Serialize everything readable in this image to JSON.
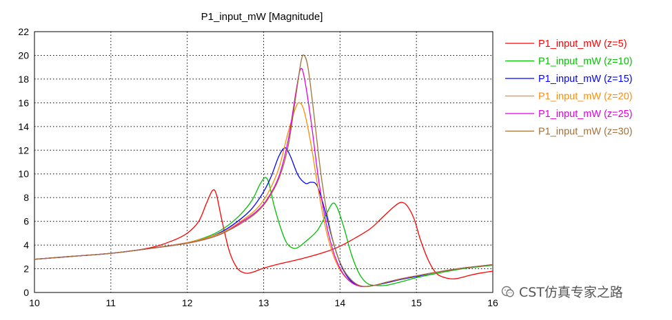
{
  "chart_data": {
    "type": "line",
    "title": "P1_input_mW [Magnitude]",
    "xlabel": "",
    "ylabel": "",
    "xlim": [
      10,
      16
    ],
    "ylim": [
      0,
      22
    ],
    "x_ticks": [
      10,
      11,
      12,
      13,
      14,
      15,
      16
    ],
    "y_ticks": [
      0,
      2,
      4,
      6,
      8,
      10,
      12,
      14,
      16,
      18,
      20,
      22
    ],
    "grid": true,
    "legend_position": "right",
    "series": [
      {
        "name": "P1_input_mW (z=5)",
        "color": "#ff0000",
        "points": [
          [
            10,
            2.8
          ],
          [
            10.5,
            3.05
          ],
          [
            11,
            3.3
          ],
          [
            11.5,
            3.75
          ],
          [
            11.8,
            4.35
          ],
          [
            12.0,
            5.0
          ],
          [
            12.15,
            6.0
          ],
          [
            12.25,
            7.5
          ],
          [
            12.33,
            8.6
          ],
          [
            12.38,
            8.3
          ],
          [
            12.45,
            6.2
          ],
          [
            12.55,
            3.5
          ],
          [
            12.65,
            2.1
          ],
          [
            12.75,
            1.65
          ],
          [
            12.85,
            1.7
          ],
          [
            13.0,
            2.05
          ],
          [
            13.2,
            2.4
          ],
          [
            13.5,
            2.85
          ],
          [
            13.8,
            3.4
          ],
          [
            14.0,
            3.9
          ],
          [
            14.2,
            4.6
          ],
          [
            14.4,
            5.4
          ],
          [
            14.55,
            6.3
          ],
          [
            14.7,
            7.2
          ],
          [
            14.8,
            7.6
          ],
          [
            14.88,
            7.3
          ],
          [
            14.97,
            6.2
          ],
          [
            15.05,
            4.5
          ],
          [
            15.15,
            2.8
          ],
          [
            15.25,
            1.7
          ],
          [
            15.35,
            1.3
          ],
          [
            15.5,
            1.15
          ],
          [
            15.7,
            1.45
          ],
          [
            15.85,
            1.65
          ],
          [
            16.0,
            1.8
          ]
        ]
      },
      {
        "name": "P1_input_mW (z=10)",
        "color": "#00c000",
        "points": [
          [
            10,
            2.8
          ],
          [
            10.5,
            3.05
          ],
          [
            11,
            3.3
          ],
          [
            11.5,
            3.7
          ],
          [
            12.0,
            4.2
          ],
          [
            12.3,
            4.8
          ],
          [
            12.5,
            5.5
          ],
          [
            12.7,
            6.6
          ],
          [
            12.85,
            7.8
          ],
          [
            12.95,
            9.1
          ],
          [
            13.02,
            9.7
          ],
          [
            13.07,
            9.2
          ],
          [
            13.13,
            7.5
          ],
          [
            13.22,
            5.5
          ],
          [
            13.3,
            4.2
          ],
          [
            13.38,
            3.75
          ],
          [
            13.45,
            3.8
          ],
          [
            13.55,
            4.3
          ],
          [
            13.7,
            5.2
          ],
          [
            13.82,
            6.6
          ],
          [
            13.9,
            7.5
          ],
          [
            13.96,
            7.2
          ],
          [
            14.05,
            5.5
          ],
          [
            14.15,
            3.2
          ],
          [
            14.25,
            1.6
          ],
          [
            14.35,
            0.8
          ],
          [
            14.45,
            0.6
          ],
          [
            14.6,
            0.6
          ],
          [
            14.8,
            0.9
          ],
          [
            15.0,
            1.25
          ],
          [
            15.3,
            1.65
          ],
          [
            15.6,
            2.0
          ],
          [
            16.0,
            2.3
          ]
        ]
      },
      {
        "name": "P1_input_mW (z=15)",
        "color": "#0000ff",
        "points": [
          [
            10,
            2.8
          ],
          [
            10.5,
            3.05
          ],
          [
            11,
            3.3
          ],
          [
            11.5,
            3.7
          ],
          [
            12.0,
            4.2
          ],
          [
            12.3,
            4.7
          ],
          [
            12.5,
            5.3
          ],
          [
            12.7,
            6.2
          ],
          [
            12.85,
            7.1
          ],
          [
            13.0,
            8.5
          ],
          [
            13.1,
            9.8
          ],
          [
            13.2,
            11.5
          ],
          [
            13.28,
            12.2
          ],
          [
            13.35,
            11.5
          ],
          [
            13.45,
            9.9
          ],
          [
            13.55,
            9.2
          ],
          [
            13.62,
            9.3
          ],
          [
            13.7,
            9.0
          ],
          [
            13.8,
            7.0
          ],
          [
            13.9,
            4.5
          ],
          [
            14.0,
            2.5
          ],
          [
            14.1,
            1.3
          ],
          [
            14.2,
            0.7
          ],
          [
            14.3,
            0.5
          ],
          [
            14.4,
            0.55
          ],
          [
            14.6,
            0.8
          ],
          [
            14.8,
            1.1
          ],
          [
            15.0,
            1.35
          ],
          [
            15.3,
            1.75
          ],
          [
            15.6,
            2.05
          ],
          [
            16.0,
            2.35
          ]
        ]
      },
      {
        "name": "P1_input_mW (z=20)",
        "color": "#ff8c00",
        "points": [
          [
            10,
            2.8
          ],
          [
            10.5,
            3.05
          ],
          [
            11,
            3.3
          ],
          [
            11.5,
            3.7
          ],
          [
            12.0,
            4.2
          ],
          [
            12.3,
            4.7
          ],
          [
            12.5,
            5.2
          ],
          [
            12.7,
            6.0
          ],
          [
            12.9,
            7.0
          ],
          [
            13.05,
            8.3
          ],
          [
            13.2,
            10.5
          ],
          [
            13.32,
            13.5
          ],
          [
            13.42,
            15.6
          ],
          [
            13.47,
            16.0
          ],
          [
            13.53,
            15.3
          ],
          [
            13.62,
            12.5
          ],
          [
            13.72,
            8.5
          ],
          [
            13.82,
            5.2
          ],
          [
            13.92,
            3.0
          ],
          [
            14.02,
            1.7
          ],
          [
            14.12,
            1.0
          ],
          [
            14.22,
            0.6
          ],
          [
            14.32,
            0.5
          ],
          [
            14.45,
            0.6
          ],
          [
            14.6,
            0.85
          ],
          [
            14.8,
            1.15
          ],
          [
            15.0,
            1.4
          ],
          [
            15.3,
            1.75
          ],
          [
            15.6,
            2.05
          ],
          [
            16.0,
            2.35
          ]
        ]
      },
      {
        "name": "P1_input_mW (z=25)",
        "color": "#e000e0",
        "points": [
          [
            10,
            2.8
          ],
          [
            10.5,
            3.05
          ],
          [
            11,
            3.3
          ],
          [
            11.5,
            3.7
          ],
          [
            12.0,
            4.15
          ],
          [
            12.3,
            4.6
          ],
          [
            12.5,
            5.1
          ],
          [
            12.7,
            5.9
          ],
          [
            12.9,
            6.8
          ],
          [
            13.05,
            7.9
          ],
          [
            13.2,
            9.8
          ],
          [
            13.32,
            12.8
          ],
          [
            13.42,
            16.8
          ],
          [
            13.48,
            18.8
          ],
          [
            13.53,
            18.2
          ],
          [
            13.62,
            14.5
          ],
          [
            13.72,
            9.5
          ],
          [
            13.82,
            5.8
          ],
          [
            13.92,
            3.3
          ],
          [
            14.02,
            1.8
          ],
          [
            14.12,
            1.0
          ],
          [
            14.22,
            0.6
          ],
          [
            14.32,
            0.5
          ],
          [
            14.45,
            0.6
          ],
          [
            14.6,
            0.85
          ],
          [
            14.8,
            1.15
          ],
          [
            15.0,
            1.4
          ],
          [
            15.3,
            1.75
          ],
          [
            15.6,
            2.05
          ],
          [
            16.0,
            2.35
          ]
        ]
      },
      {
        "name": "P1_input_mW (z=30)",
        "color": "#a0703a",
        "points": [
          [
            10,
            2.8
          ],
          [
            10.5,
            3.05
          ],
          [
            11,
            3.3
          ],
          [
            11.5,
            3.7
          ],
          [
            12.0,
            4.15
          ],
          [
            12.3,
            4.6
          ],
          [
            12.5,
            5.1
          ],
          [
            12.7,
            5.8
          ],
          [
            12.9,
            6.7
          ],
          [
            13.05,
            7.8
          ],
          [
            13.2,
            9.6
          ],
          [
            13.32,
            12.3
          ],
          [
            13.42,
            16.5
          ],
          [
            13.49,
            19.5
          ],
          [
            13.53,
            20.0
          ],
          [
            13.58,
            19.0
          ],
          [
            13.65,
            15.5
          ],
          [
            13.75,
            10.0
          ],
          [
            13.85,
            6.0
          ],
          [
            13.95,
            3.4
          ],
          [
            14.05,
            1.9
          ],
          [
            14.15,
            1.05
          ],
          [
            14.25,
            0.6
          ],
          [
            14.35,
            0.5
          ],
          [
            14.45,
            0.6
          ],
          [
            14.6,
            0.85
          ],
          [
            14.8,
            1.15
          ],
          [
            15.0,
            1.4
          ],
          [
            15.3,
            1.75
          ],
          [
            15.6,
            2.05
          ],
          [
            16.0,
            2.35
          ]
        ]
      }
    ]
  },
  "watermark": {
    "text": "CST仿真专家之路",
    "icon": "wechat-icon"
  }
}
